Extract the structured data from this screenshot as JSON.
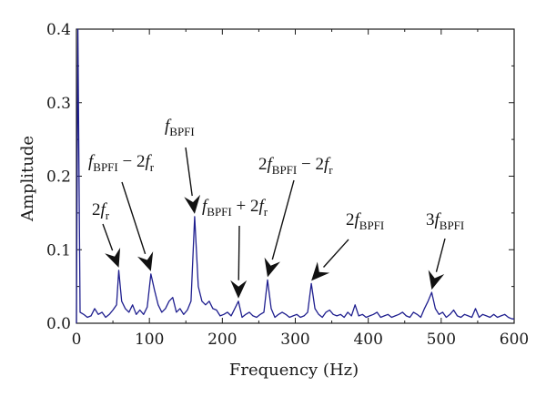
{
  "chart_data": {
    "type": "line",
    "title": "",
    "xlabel": "Frequency (Hz)",
    "ylabel": "Amplitude",
    "xlim": [
      0,
      600
    ],
    "ylim": [
      0,
      0.4
    ],
    "xticks": [
      "0",
      "100",
      "200",
      "300",
      "400",
      "500",
      "600"
    ],
    "yticks": [
      "0.0",
      "0.1",
      "0.2",
      "0.3",
      "0.4"
    ],
    "grid": false,
    "series": [
      {
        "color": "#1f1f8f",
        "x": [
          0,
          2,
          5,
          10,
          15,
          20,
          25,
          30,
          35,
          40,
          45,
          50,
          55,
          58,
          62,
          67,
          72,
          77,
          82,
          87,
          92,
          97,
          102,
          107,
          112,
          117,
          122,
          127,
          132,
          137,
          142,
          147,
          152,
          157,
          162,
          167,
          172,
          177,
          182,
          187,
          192,
          197,
          202,
          207,
          212,
          217,
          222,
          227,
          232,
          237,
          242,
          247,
          252,
          257,
          262,
          267,
          272,
          277,
          282,
          287,
          292,
          297,
          302,
          307,
          312,
          317,
          322,
          327,
          332,
          337,
          342,
          347,
          352,
          357,
          362,
          367,
          372,
          377,
          382,
          387,
          392,
          397,
          402,
          407,
          412,
          417,
          422,
          427,
          432,
          437,
          442,
          447,
          452,
          457,
          462,
          467,
          472,
          477,
          482,
          487,
          492,
          497,
          502,
          507,
          512,
          517,
          522,
          527,
          532,
          537,
          542,
          547,
          552,
          557,
          562,
          567,
          572,
          577,
          582,
          587,
          592,
          597,
          600
        ],
        "y": [
          0.0,
          0.4,
          0.015,
          0.012,
          0.008,
          0.01,
          0.02,
          0.012,
          0.015,
          0.008,
          0.012,
          0.018,
          0.025,
          0.072,
          0.03,
          0.02,
          0.015,
          0.025,
          0.012,
          0.018,
          0.012,
          0.022,
          0.067,
          0.045,
          0.025,
          0.015,
          0.02,
          0.03,
          0.035,
          0.015,
          0.02,
          0.012,
          0.018,
          0.03,
          0.145,
          0.05,
          0.03,
          0.025,
          0.03,
          0.02,
          0.018,
          0.01,
          0.012,
          0.015,
          0.01,
          0.02,
          0.03,
          0.008,
          0.012,
          0.015,
          0.01,
          0.008,
          0.012,
          0.015,
          0.059,
          0.02,
          0.008,
          0.012,
          0.015,
          0.012,
          0.008,
          0.01,
          0.012,
          0.008,
          0.01,
          0.015,
          0.054,
          0.02,
          0.012,
          0.008,
          0.015,
          0.018,
          0.012,
          0.01,
          0.012,
          0.008,
          0.015,
          0.01,
          0.025,
          0.01,
          0.012,
          0.008,
          0.01,
          0.012,
          0.015,
          0.008,
          0.01,
          0.012,
          0.008,
          0.01,
          0.012,
          0.015,
          0.01,
          0.008,
          0.015,
          0.012,
          0.008,
          0.02,
          0.03,
          0.042,
          0.02,
          0.012,
          0.015,
          0.008,
          0.012,
          0.018,
          0.01,
          0.008,
          0.012,
          0.01,
          0.008,
          0.02,
          0.008,
          0.012,
          0.01,
          0.008,
          0.012,
          0.008,
          0.01,
          0.012,
          0.008,
          0.006,
          0.006
        ]
      }
    ],
    "annotations": [
      {
        "text": "2f_r",
        "target": [
          58,
          0.072
        ]
      },
      {
        "text": "f_BPFI − 2f_r",
        "target": [
          102,
          0.067
        ]
      },
      {
        "text": "f_BPFI",
        "target": [
          162,
          0.145
        ]
      },
      {
        "text": "f_BPFI + 2f_r",
        "target": [
          222,
          0.03
        ]
      },
      {
        "text": "2f_BPFI − 2f_r",
        "target": [
          262,
          0.059
        ]
      },
      {
        "text": "2f_BPFI",
        "target": [
          322,
          0.054
        ]
      },
      {
        "text": "3f_BPFI",
        "target": [
          487,
          0.042
        ]
      }
    ]
  }
}
